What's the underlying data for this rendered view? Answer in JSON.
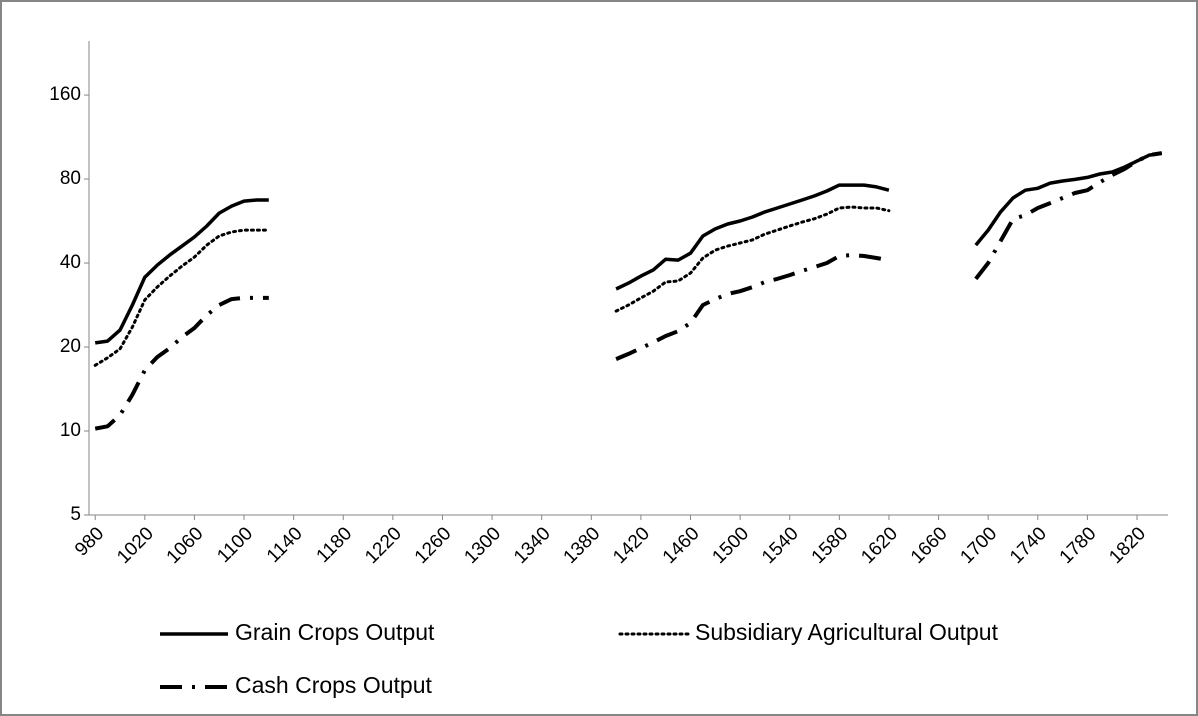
{
  "chart_data": {
    "type": "line",
    "x": [
      980,
      990,
      1000,
      1010,
      1020,
      1030,
      1040,
      1050,
      1060,
      1070,
      1080,
      1090,
      1100,
      1110,
      1120,
      1130,
      1400,
      1410,
      1420,
      1430,
      1440,
      1450,
      1460,
      1470,
      1480,
      1490,
      1500,
      1510,
      1520,
      1530,
      1540,
      1550,
      1560,
      1570,
      1580,
      1590,
      1600,
      1610,
      1620,
      1630,
      1690,
      1700,
      1710,
      1720,
      1730,
      1740,
      1750,
      1760,
      1770,
      1780,
      1790,
      1800,
      1810,
      1820,
      1830,
      1840
    ],
    "series": [
      {
        "name": "Grain Crops Output",
        "color": "#000000",
        "dash": "solid",
        "values": [
          20.7,
          21.0,
          23.0,
          28.3,
          35.6,
          39.3,
          42.7,
          46.0,
          49.6,
          54.3,
          60.4,
          64.0,
          66.7,
          67.3,
          67.3,
          null,
          32.3,
          33.9,
          35.9,
          37.8,
          41.3,
          41.0,
          43.4,
          50.0,
          53.0,
          55.2,
          56.6,
          58.5,
          61.0,
          63.0,
          65.1,
          67.3,
          69.6,
          72.5,
          76.1,
          76.1,
          76.1,
          75.0,
          73.0,
          null,
          46.4,
          52.5,
          61.0,
          68.4,
          73.0,
          74.1,
          77.4,
          78.7,
          79.8,
          81.1,
          83.4,
          84.8,
          88.3,
          92.8,
          97.5,
          99.1
        ]
      },
      {
        "name": "Subsidiary Agricultural Output",
        "color": "#000000",
        "dash": "dotted",
        "values": [
          17.2,
          18.3,
          19.7,
          23.6,
          29.5,
          32.8,
          35.9,
          39.0,
          42.0,
          46.4,
          50.0,
          51.7,
          52.5,
          52.5,
          52.5,
          null,
          26.9,
          28.3,
          30.0,
          31.7,
          34.2,
          34.5,
          36.8,
          41.7,
          44.5,
          46.0,
          47.2,
          48.4,
          50.8,
          52.5,
          54.3,
          56.1,
          57.7,
          59.9,
          63.0,
          63.5,
          63.0,
          63.0,
          61.6,
          null,
          null,
          null,
          null,
          null,
          null,
          null,
          null,
          null,
          null,
          null,
          null,
          null,
          null,
          null,
          null,
          null
        ]
      },
      {
        "name": "Cash Crops Output",
        "color": "#000000",
        "dash": "dashdot",
        "values": [
          10.2,
          10.4,
          11.4,
          13.5,
          16.5,
          18.4,
          19.8,
          21.7,
          23.4,
          26.0,
          28.3,
          29.7,
          30.0,
          30.0,
          30.0,
          null,
          18.1,
          18.9,
          19.8,
          20.8,
          21.9,
          22.8,
          24.4,
          28.3,
          29.7,
          31.0,
          31.7,
          32.8,
          34.2,
          35.1,
          36.2,
          37.5,
          38.7,
          40.0,
          42.4,
          42.7,
          42.4,
          41.7,
          41.0,
          null,
          35.1,
          40.0,
          48.0,
          57.5,
          59.4,
          63.0,
          65.6,
          68.4,
          71.3,
          73.0,
          77.8,
          82.7,
          86.9,
          92.8,
          97.5,
          99.1
        ]
      }
    ],
    "xlim": [
      975,
      1845
    ],
    "xticks": [
      980,
      1020,
      1060,
      1100,
      1140,
      1180,
      1220,
      1260,
      1300,
      1340,
      1380,
      1420,
      1460,
      1500,
      1540,
      1580,
      1620,
      1660,
      1700,
      1740,
      1780,
      1820
    ],
    "ylim": [
      5,
      250
    ],
    "yticks": [
      5,
      10,
      20,
      40,
      80,
      160
    ],
    "log_scale": "y",
    "log_base": 2,
    "grid": false,
    "legend": "bottom"
  }
}
